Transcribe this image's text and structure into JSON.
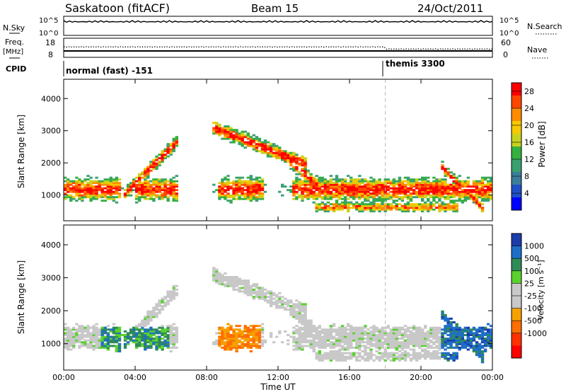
{
  "header": {
    "station": "Saskatoon (fitACF)",
    "beam": "Beam 15",
    "date": "24/Oct/2011"
  },
  "top_panels": {
    "nsky_label": "N.Sky",
    "nsky_ticks": [
      "10^5",
      "10^0"
    ],
    "nsearch_label": "N.Search",
    "nsearch_ticks": [
      "10^5",
      "10^0"
    ],
    "freq_label": "Freq.",
    "freq_unit": "[MHz]",
    "freq_ticks": [
      "18",
      "8"
    ],
    "nave_label": "Nave",
    "nave_ticks": [
      "60",
      "0"
    ],
    "cpid_label": "CPID",
    "cpid_modes": [
      {
        "label": "normal (fast) -151",
        "start_hour": 0
      },
      {
        "label": "themis 3300",
        "start_hour": 18
      }
    ]
  },
  "chart_data": [
    {
      "type": "heatmap",
      "ylabel": "Slant Range [km]",
      "xlabel": "Time UT",
      "xlim": [
        0,
        24
      ],
      "ylim": [
        200,
        4600
      ],
      "x_ticks": [
        "00:00",
        "04:00",
        "08:00",
        "12:00",
        "16:00",
        "20:00",
        "00:00"
      ],
      "y_ticks": [
        1000,
        2000,
        3000,
        4000
      ],
      "colorbar": {
        "label": "Power [dB]",
        "ticks": [
          4,
          8,
          12,
          16,
          20,
          24,
          28
        ],
        "range": [
          0,
          30
        ]
      }
    },
    {
      "type": "heatmap",
      "ylabel": "Slant Range [km]",
      "xlabel": "Time UT",
      "xlim": [
        0,
        24
      ],
      "ylim": [
        200,
        4600
      ],
      "x_ticks": [
        "00:00",
        "04:00",
        "08:00",
        "12:00",
        "16:00",
        "20:00",
        "00:00"
      ],
      "y_ticks": [
        1000,
        2000,
        3000,
        4000
      ],
      "colorbar": {
        "label": "Velocity [m s⁻¹]",
        "ticks": [
          1000,
          500,
          100,
          25,
          -25,
          -100,
          -500,
          -1000
        ]
      }
    }
  ],
  "colors": {
    "power": [
      "#0000ff",
      "#1f50c8",
      "#3c7e9a",
      "#3aa070",
      "#34b040",
      "#c8d21e",
      "#f5c800",
      "#ff8c00",
      "#ff4600",
      "#ff0000"
    ],
    "velocity": [
      "#1c3caa",
      "#1f6ec8",
      "#2e8b57",
      "#5ad22d",
      "#c8c8c8",
      "#c8c8c8",
      "#f5a000",
      "#ff6e00",
      "#ff3200",
      "#ff0000"
    ]
  }
}
